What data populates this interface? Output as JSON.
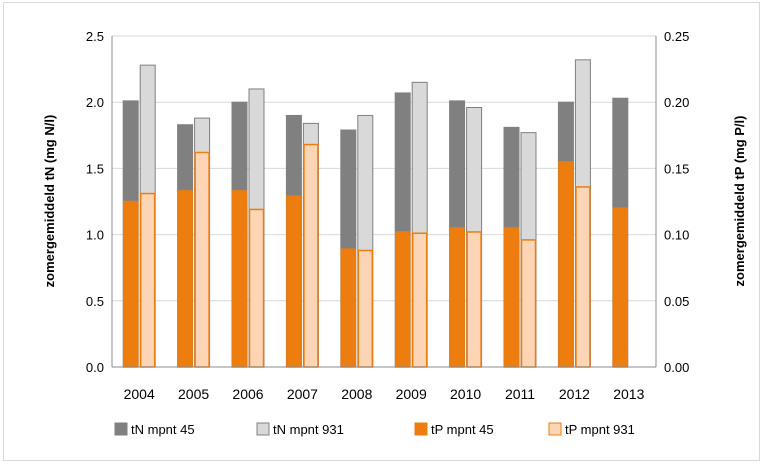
{
  "chart_data": {
    "type": "bar",
    "categories": [
      "2004",
      "2005",
      "2006",
      "2007",
      "2008",
      "2009",
      "2010",
      "2011",
      "2012",
      "2013"
    ],
    "left_axis": {
      "label": "zomergemiddeld tN (mg N/l)",
      "range": [
        0,
        2.5
      ],
      "ticks": [
        "0.0",
        "0.5",
        "1.0",
        "1.5",
        "2.0",
        "2.5"
      ]
    },
    "right_axis": {
      "label": "zomergemiddeld tP (mg P/l)",
      "range": [
        0,
        0.25
      ],
      "ticks": [
        "0.00",
        "0.05",
        "0.10",
        "0.15",
        "0.20",
        "0.25"
      ]
    },
    "series": [
      {
        "name": "tN mpnt 45",
        "axis": "left",
        "group": "mpnt45",
        "color": "#808080",
        "stroke": "#808080",
        "values": [
          2.01,
          1.83,
          2.0,
          1.9,
          1.79,
          2.07,
          2.01,
          1.81,
          2.0,
          2.03
        ]
      },
      {
        "name": "tN mpnt 931",
        "axis": "left",
        "group": "mpnt931",
        "color": "#d9d9d9",
        "stroke": "#808080",
        "values": [
          2.28,
          1.88,
          2.1,
          1.84,
          1.9,
          2.15,
          1.96,
          1.77,
          2.32,
          null
        ]
      },
      {
        "name": "tP mpnt 45",
        "axis": "right",
        "group": "mpnt45",
        "color": "#ed7d0e",
        "stroke": "#ed7d0e",
        "values": [
          0.125,
          0.133,
          0.133,
          0.129,
          0.089,
          0.102,
          0.105,
          0.105,
          0.155,
          0.12
        ]
      },
      {
        "name": "tP mpnt 931",
        "axis": "right",
        "group": "mpnt931",
        "color": "#fbd5b5",
        "stroke": "#ed7d0e",
        "values": [
          0.131,
          0.162,
          0.119,
          0.168,
          0.088,
          0.101,
          0.102,
          0.096,
          0.136,
          null
        ]
      }
    ],
    "grid": true,
    "legend_position": "bottom"
  }
}
